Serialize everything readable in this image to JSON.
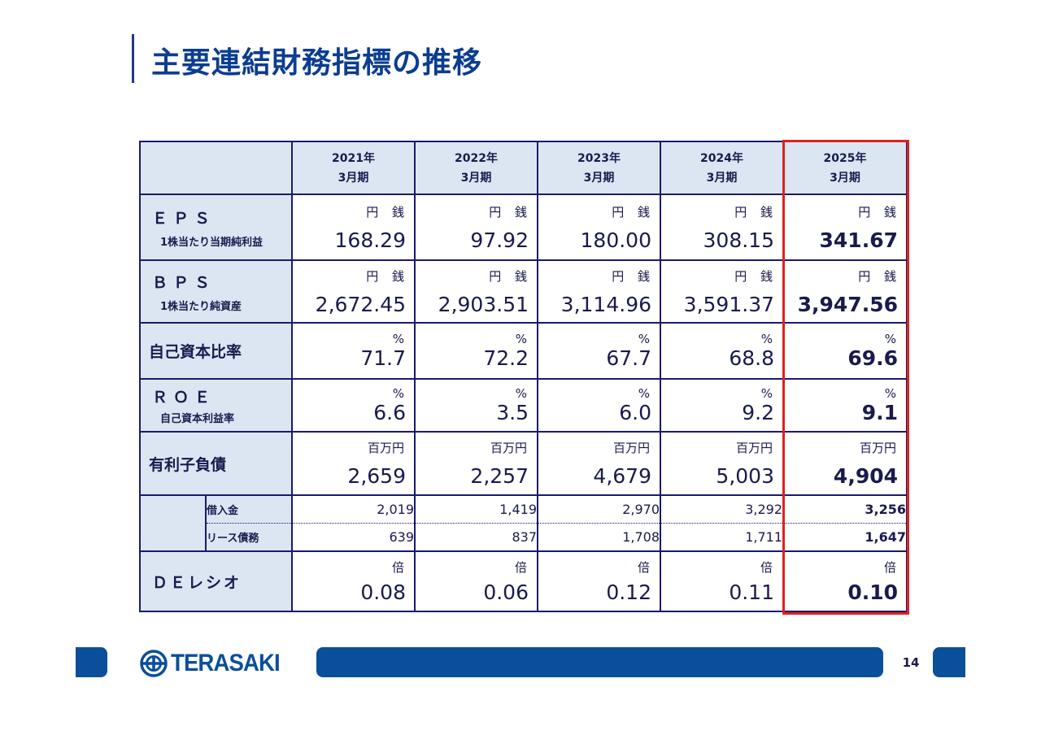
{
  "title": "主要連結財務指標の推移",
  "columns": [
    {
      "year": "2021年",
      "period": "3月期"
    },
    {
      "year": "2022年",
      "period": "3月期"
    },
    {
      "year": "2023年",
      "period": "3月期"
    },
    {
      "year": "2024年",
      "period": "3月期"
    },
    {
      "year": "2025年",
      "period": "3月期"
    }
  ],
  "rows": {
    "eps": {
      "label": "ＥＰＳ",
      "sublabel": "1株当たり当期純利益",
      "unit": "円 銭",
      "values": [
        "168.29",
        "97.92",
        "180.00",
        "308.15",
        "341.67"
      ]
    },
    "bps": {
      "label": "ＢＰＳ",
      "sublabel": "1株当たり純資産",
      "unit": "円 銭",
      "values": [
        "2,672.45",
        "2,903.51",
        "3,114.96",
        "3,591.37",
        "3,947.56"
      ]
    },
    "equity_ratio": {
      "label": "自己資本比率",
      "unit": "%",
      "values": [
        "71.7",
        "72.2",
        "67.7",
        "68.8",
        "69.6"
      ]
    },
    "roe": {
      "label": "ＲＯＥ",
      "sublabel": "自己資本利益率",
      "unit": "%",
      "values": [
        "6.6",
        "3.5",
        "6.0",
        "9.2",
        "9.1"
      ]
    },
    "debt": {
      "label": "有利子負債",
      "unit": "百万円",
      "values": [
        "2,659",
        "2,257",
        "4,679",
        "5,003",
        "4,904"
      ]
    },
    "borrowings": {
      "label": "借入金",
      "values": [
        "2,019",
        "1,419",
        "2,970",
        "3,292",
        "3,256"
      ]
    },
    "lease": {
      "label": "リース債務",
      "values": [
        "639",
        "837",
        "1,708",
        "1,711",
        "1,647"
      ]
    },
    "de_ratio": {
      "label": "ＤＥレシオ",
      "unit": "倍",
      "values": [
        "0.08",
        "0.06",
        "0.12",
        "0.11",
        "0.10"
      ]
    }
  },
  "footer": {
    "logo_text": "TERASAKI",
    "page_number": "14"
  },
  "colors": {
    "brand_blue": "#0b4f9a",
    "header_fill": "#dce6f3",
    "highlight_border": "#e02020"
  }
}
